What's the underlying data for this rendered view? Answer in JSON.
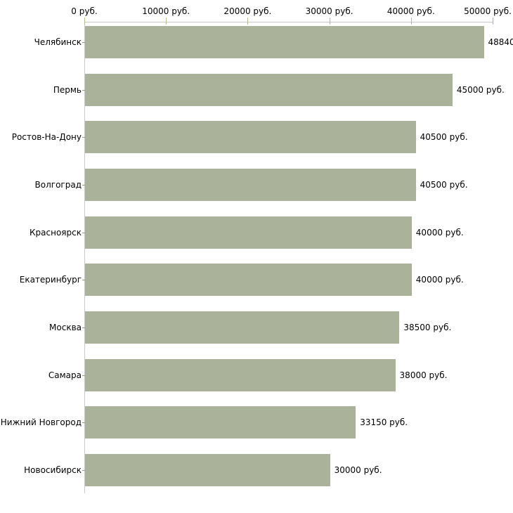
{
  "chart_data": {
    "type": "bar",
    "orientation": "horizontal",
    "title": "",
    "xlabel": "",
    "ylabel": "",
    "categories": [
      "Челябинск",
      "Пермь",
      "Ростов-На-Дону",
      "Волгоград",
      "Красноярск",
      "Екатеринбург",
      "Москва",
      "Самара",
      "Нижний Новгород",
      "Новосибирск"
    ],
    "values": [
      48840,
      45000,
      40500,
      40500,
      40000,
      40000,
      38500,
      38000,
      33150,
      30000
    ],
    "value_labels": [
      "48840",
      "45000 руб.",
      "40500 руб.",
      "40500 руб.",
      "40000 руб.",
      "40000 руб.",
      "38500 руб.",
      "38000 руб.",
      "33150 руб.",
      "30000 руб."
    ],
    "xlim": [
      0,
      50000
    ],
    "xticks": [
      0,
      10000,
      20000,
      30000,
      40000,
      50000
    ],
    "xtick_labels": [
      "0 руб.",
      "10000 руб.",
      "20000 руб.",
      "30000 руб.",
      "40000 руб.",
      "50000 руб."
    ],
    "grid": false,
    "legend": false,
    "axis_position": "top",
    "bar_color": "#aab299",
    "axis_line_color": "#c8c8c8",
    "x_tick_color": "#b9b98e",
    "y_tick_color": "#99997a",
    "text_color": "#000000",
    "background_color": "#ffffff"
  }
}
